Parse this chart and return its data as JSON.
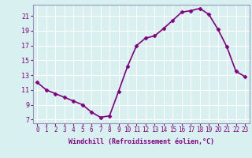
{
  "x": [
    0,
    1,
    2,
    3,
    4,
    5,
    6,
    7,
    8,
    9,
    10,
    11,
    12,
    13,
    14,
    15,
    16,
    17,
    18,
    19,
    20,
    21,
    22,
    23
  ],
  "y": [
    12.0,
    11.0,
    10.5,
    10.0,
    9.5,
    9.0,
    8.0,
    7.3,
    7.5,
    10.8,
    14.2,
    17.0,
    18.0,
    18.3,
    19.3,
    20.4,
    21.5,
    21.7,
    22.0,
    21.2,
    19.2,
    16.8,
    13.5,
    12.8
  ],
  "xlim": [
    -0.5,
    23.5
  ],
  "ylim": [
    6.5,
    22.5
  ],
  "xticks": [
    0,
    1,
    2,
    3,
    4,
    5,
    6,
    7,
    8,
    9,
    10,
    11,
    12,
    13,
    14,
    15,
    16,
    17,
    18,
    19,
    20,
    21,
    22,
    23
  ],
  "yticks": [
    7,
    9,
    11,
    13,
    15,
    17,
    19,
    21
  ],
  "xlabel": "Windchill (Refroidissement éolien,°C)",
  "line_color": "#800080",
  "marker_color": "#800080",
  "bg_color": "#d8f0f0",
  "grid_color": "#ffffff",
  "tick_color": "#800080",
  "label_color": "#800080",
  "spine_color": "#9999bb",
  "font_family": "monospace",
  "tick_fontsize": 5.5,
  "label_fontsize": 6.0,
  "linewidth": 1.2,
  "markersize": 2.5
}
